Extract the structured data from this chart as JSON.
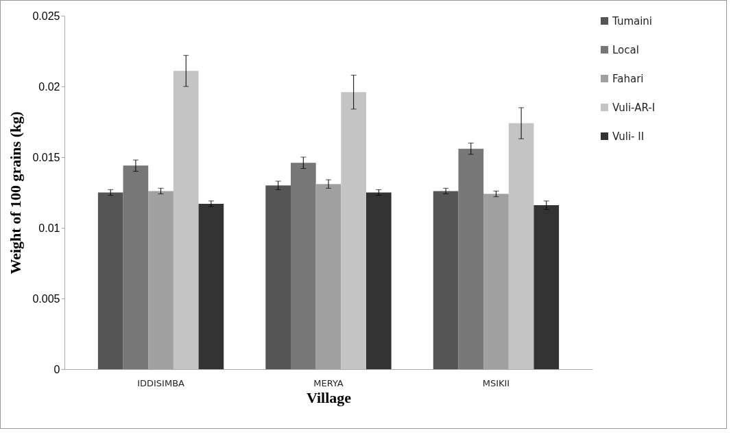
{
  "chart_data": {
    "type": "bar",
    "xlabel": "Village",
    "ylabel": "Weight of 100 grains (kg)",
    "categories": [
      "IDDISIMBA",
      "MERYA",
      "MSIKII"
    ],
    "series": [
      {
        "name": "Tumaini",
        "color": "#555555",
        "values": [
          0.0125,
          0.013,
          0.0126
        ],
        "errors": [
          0.0002,
          0.0003,
          0.0002
        ]
      },
      {
        "name": "Local",
        "color": "#777777",
        "values": [
          0.0144,
          0.0146,
          0.0156
        ],
        "errors": [
          0.0004,
          0.0004,
          0.0004
        ]
      },
      {
        "name": "Fahari",
        "color": "#a0a0a0",
        "values": [
          0.0126,
          0.0131,
          0.0124
        ],
        "errors": [
          0.0002,
          0.0003,
          0.0002
        ]
      },
      {
        "name": "Vuli-AR-I",
        "color": "#c4c4c4",
        "values": [
          0.0211,
          0.0196,
          0.0174
        ],
        "errors": [
          0.0011,
          0.0012,
          0.0011
        ]
      },
      {
        "name": "Vuli- II",
        "color": "#333333",
        "values": [
          0.0117,
          0.0125,
          0.0116
        ],
        "errors": [
          0.0002,
          0.0002,
          0.0003
        ]
      }
    ],
    "ylim": [
      0,
      0.025
    ],
    "yticks": [
      0,
      0.005,
      0.01,
      0.015,
      0.02,
      0.025
    ],
    "legend": "right"
  }
}
